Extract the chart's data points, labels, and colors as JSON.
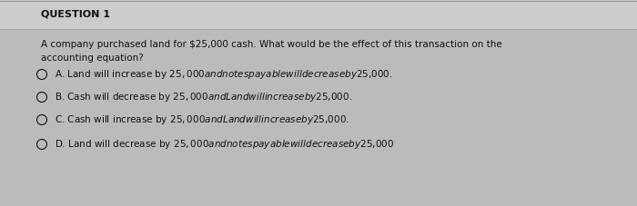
{
  "title": "QUESTION 1",
  "question": "A company purchased land for $25,000 cash. What would be the effect of this transaction on the\naccounting equation?",
  "options": [
    "A. Land will increase by $25,000 and notes payable will decrease by $25,000.",
    "B. Cash will decrease by $25,000 and Land will increase by $25,000.",
    "C. Cash will increase by $25,000 and Land will increase by $25,000.",
    "D. Land will decrease by $25,000 and notes payable will decrease by $25,000"
  ],
  "bg_color": "#bbbbbb",
  "title_bg_color": "#cccccc",
  "text_color": "#111111",
  "title_fontsize": 8.0,
  "question_fontsize": 7.5,
  "option_fontsize": 7.5
}
